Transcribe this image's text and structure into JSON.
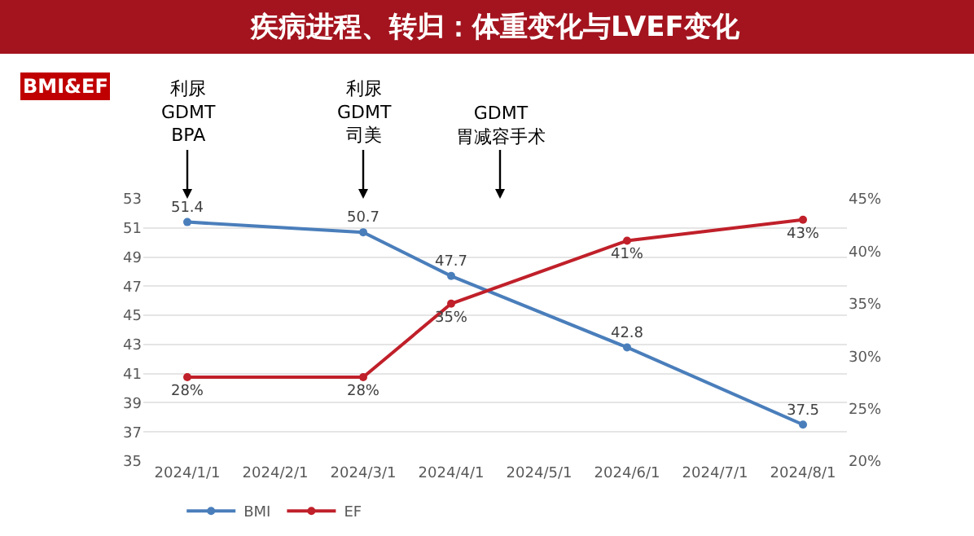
{
  "chart_data": {
    "type": "line",
    "title": "疾病进程、转归：体重变化与LVEF变化",
    "subtitle": "BMI&EF",
    "categories": [
      "2024/1/1",
      "2024/2/1",
      "2024/3/1",
      "2024/4/1",
      "2024/5/1",
      "2024/6/1",
      "2024/7/1",
      "2024/8/1"
    ],
    "series": [
      {
        "name": "BMI",
        "color": "#4a7ebb",
        "values": [
          51.4,
          null,
          50.7,
          47.7,
          null,
          42.8,
          null,
          37.5
        ],
        "value_labels": [
          "51.4",
          null,
          "50.7",
          "47.7",
          null,
          "42.8",
          null,
          "37.5"
        ]
      },
      {
        "name": "EF",
        "color": "#c0202a",
        "axis": "y2",
        "values": [
          28,
          null,
          28,
          35,
          null,
          41,
          null,
          43
        ],
        "value_labels": [
          "28%",
          null,
          "28%",
          "35%",
          null,
          "41%",
          null,
          "43%"
        ]
      }
    ],
    "ylim": [
      35,
      53
    ],
    "yticks": [
      35,
      37,
      39,
      41,
      43,
      45,
      47,
      49,
      51,
      53
    ],
    "y2lim": [
      20,
      45
    ],
    "y2ticks": [
      {
        "value": 20,
        "label": "20%"
      },
      {
        "value": 25,
        "label": "25%"
      },
      {
        "value": 30,
        "label": "30%"
      },
      {
        "value": 35,
        "label": "35%"
      },
      {
        "value": 40,
        "label": "40%"
      },
      {
        "value": 45,
        "label": "45%"
      }
    ],
    "annotations": [
      {
        "text": "利尿\nGDMT\nBPA",
        "x": "2024/1/1"
      },
      {
        "text": "利尿\nGDMT\n司美",
        "x": "2024/3/1"
      },
      "GDMT\n胃减容手术"
    ],
    "grid": "y",
    "legend": "bottom left",
    "marker": "circle",
    "line_style": "solid"
  }
}
